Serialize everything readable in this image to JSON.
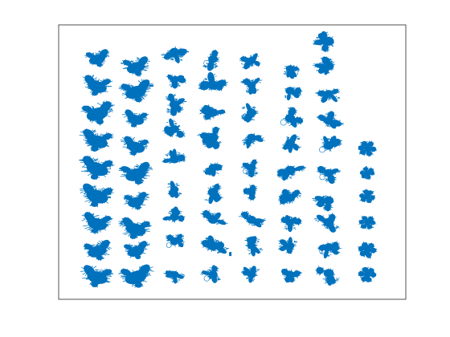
{
  "figure": {
    "background": "#ffffff",
    "title": ""
  },
  "chart_data": {
    "type": "scatter",
    "title": "",
    "xlabel": "",
    "ylabel": "",
    "grid": false,
    "legend": "none",
    "axis_ticks": "hidden",
    "box": true,
    "xlim": [
      0,
      9
    ],
    "ylim": [
      0,
      10
    ],
    "marker_color": "#0072bd",
    "series": [
      {
        "group": 1,
        "glyph_style": "bird",
        "points": [
          [
            1.0,
            8.8
          ],
          [
            1.0,
            7.8
          ],
          [
            1.0,
            6.8
          ],
          [
            1.0,
            5.8
          ],
          [
            1.0,
            4.8
          ],
          [
            1.0,
            3.8
          ],
          [
            1.0,
            2.8
          ],
          [
            1.0,
            1.8
          ],
          [
            1.0,
            0.85
          ]
        ]
      },
      {
        "group": 2,
        "glyph_style": "bird",
        "points": [
          [
            2.0,
            8.5
          ],
          [
            2.0,
            7.6
          ],
          [
            2.0,
            6.6
          ],
          [
            2.0,
            5.6
          ],
          [
            2.0,
            4.6
          ],
          [
            2.0,
            3.6
          ],
          [
            2.0,
            2.6
          ],
          [
            2.0,
            1.8
          ],
          [
            2.0,
            0.85
          ]
        ]
      },
      {
        "group": 3,
        "glyph_style": "leafy",
        "points": [
          [
            3.0,
            9.0
          ],
          [
            3.0,
            8.0
          ],
          [
            3.0,
            7.1
          ],
          [
            3.0,
            6.2
          ],
          [
            3.0,
            5.1
          ],
          [
            3.0,
            4.0
          ],
          [
            3.0,
            3.0
          ],
          [
            3.0,
            2.1
          ],
          [
            3.0,
            0.9
          ]
        ]
      },
      {
        "group": 4,
        "glyph_style": "leafy",
        "points": [
          [
            4.0,
            8.75
          ],
          [
            4.0,
            7.8
          ],
          [
            4.0,
            6.8
          ],
          [
            4.0,
            5.9
          ],
          [
            4.0,
            4.8
          ],
          [
            4.0,
            3.9
          ],
          [
            4.0,
            2.9
          ],
          [
            4.0,
            1.95
          ],
          [
            4.0,
            0.9
          ]
        ]
      },
      {
        "group": 5,
        "glyph_style": "leafy",
        "points": [
          [
            5.0,
            8.7
          ],
          [
            5.0,
            7.8
          ],
          [
            5.0,
            6.8
          ],
          [
            5.0,
            5.9
          ],
          [
            5.0,
            4.8
          ],
          [
            5.0,
            3.9
          ],
          [
            5.0,
            2.9
          ],
          [
            5.0,
            1.95
          ],
          [
            5.0,
            0.9
          ]
        ]
      },
      {
        "group": 6,
        "glyph_style": "leafy",
        "points": [
          [
            6.0,
            8.4
          ],
          [
            6.0,
            7.6
          ],
          [
            6.0,
            6.6
          ],
          [
            6.0,
            5.7
          ],
          [
            6.0,
            4.7
          ],
          [
            6.0,
            3.7
          ],
          [
            6.0,
            2.8
          ],
          [
            6.0,
            1.95
          ],
          [
            6.0,
            0.9
          ]
        ]
      },
      {
        "group": 7,
        "glyph_style": "leafy",
        "points": [
          [
            7.0,
            9.4
          ],
          [
            7.0,
            8.5
          ],
          [
            7.0,
            7.5
          ],
          [
            7.0,
            6.5
          ],
          [
            7.0,
            5.6
          ],
          [
            7.0,
            4.6
          ],
          [
            7.0,
            3.6
          ],
          [
            7.0,
            2.8
          ],
          [
            7.0,
            1.9
          ],
          [
            7.0,
            0.95
          ]
        ]
      },
      {
        "group": 8,
        "glyph_style": "flower",
        "points": [
          [
            8.0,
            5.5
          ],
          [
            8.0,
            4.6
          ],
          [
            8.0,
            3.75
          ],
          [
            8.0,
            2.8
          ],
          [
            8.0,
            1.8
          ],
          [
            8.0,
            0.9
          ]
        ]
      }
    ],
    "stray_markers": [
      [
        4.45,
        1.65
      ]
    ]
  }
}
